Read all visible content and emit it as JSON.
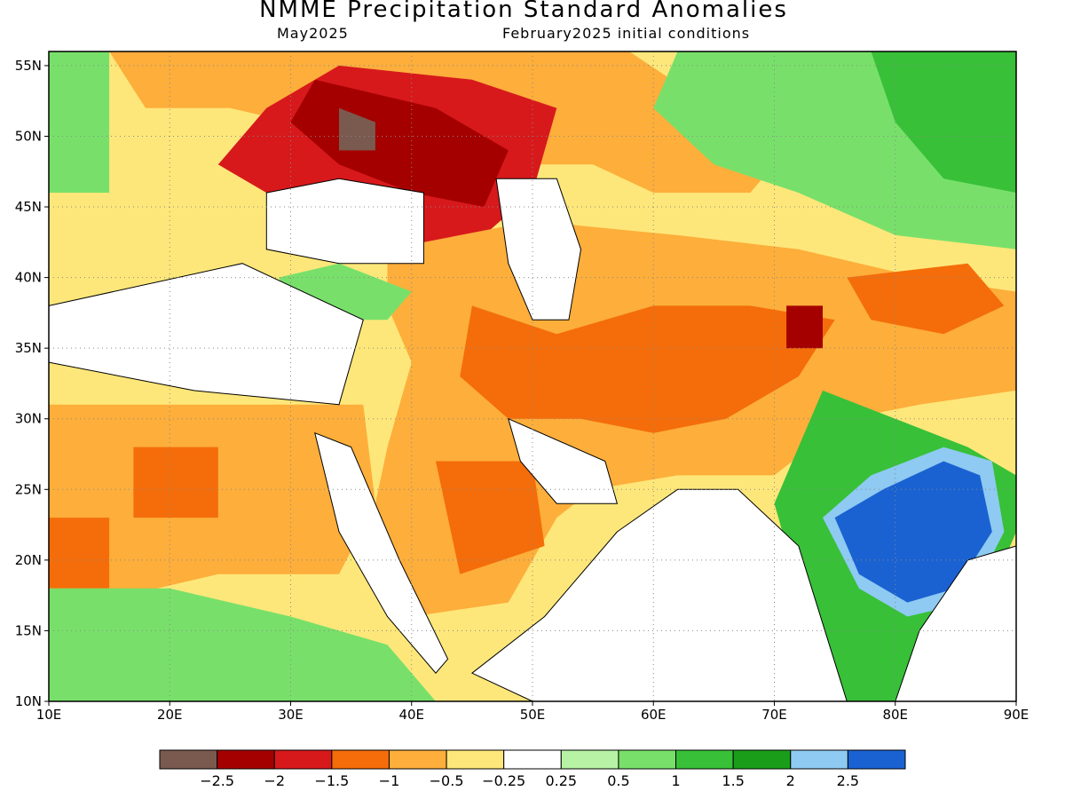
{
  "title": "NMME Precipitation Standard Anomalies",
  "subtitle_left": "May2025",
  "subtitle_right": "February2025 initial conditions",
  "map": {
    "lon_range": [
      10,
      90
    ],
    "lat_range": [
      10,
      56
    ],
    "lon_ticks": [
      "10E",
      "20E",
      "30E",
      "40E",
      "50E",
      "60E",
      "70E",
      "80E",
      "90E"
    ],
    "lat_ticks": [
      "10N",
      "15N",
      "20N",
      "25N",
      "30N",
      "35N",
      "40N",
      "45N",
      "50N",
      "55N"
    ],
    "grid": "dotted"
  },
  "colorbar": {
    "colors": [
      "#7a5a4f",
      "#a50000",
      "#d7191c",
      "#f46d0a",
      "#fdae3b",
      "#fee77a",
      "#ffffff",
      "#b7f2a5",
      "#78e06a",
      "#38c038",
      "#1a9e1a",
      "#8ecaf1",
      "#1a62d2"
    ],
    "labels": [
      "−2.5",
      "−2",
      "−1.5",
      "−1",
      "−0.5",
      "−0.25",
      "0.25",
      "0.5",
      "1",
      "1.5",
      "2",
      "2.5"
    ]
  },
  "regions": [
    {
      "name": "russia-europe-dry",
      "color": "#fdae3b",
      "pts": [
        [
          15,
          56
        ],
        [
          58,
          56
        ],
        [
          65,
          52
        ],
        [
          72,
          50
        ],
        [
          68,
          46
        ],
        [
          60,
          46
        ],
        [
          55,
          48
        ],
        [
          45,
          48
        ],
        [
          35,
          50
        ],
        [
          25,
          52
        ],
        [
          18,
          52
        ]
      ]
    },
    {
      "name": "ukraine-russia-strong-dry",
      "color": "#d7191c",
      "pts": [
        [
          28,
          52
        ],
        [
          34,
          55
        ],
        [
          45,
          54
        ],
        [
          52,
          52
        ],
        [
          50,
          46
        ],
        [
          46,
          43
        ],
        [
          38,
          42
        ],
        [
          30,
          45
        ],
        [
          24,
          48
        ]
      ]
    },
    {
      "name": "russia-core",
      "color": "#a50000",
      "pts": [
        [
          32,
          54
        ],
        [
          42,
          52
        ],
        [
          48,
          49
        ],
        [
          46,
          45
        ],
        [
          40,
          46
        ],
        [
          34,
          48
        ],
        [
          30,
          51
        ]
      ]
    },
    {
      "name": "extreme-dry",
      "color": "#7a5a4f",
      "pts": [
        [
          34,
          52
        ],
        [
          37,
          51
        ],
        [
          37,
          49
        ],
        [
          34,
          49
        ]
      ]
    },
    {
      "name": "mideast-dry",
      "color": "#fdae3b",
      "pts": [
        [
          38,
          42
        ],
        [
          50,
          44
        ],
        [
          62,
          43
        ],
        [
          72,
          42
        ],
        [
          82,
          40
        ],
        [
          90,
          39
        ],
        [
          90,
          32
        ],
        [
          82,
          31
        ],
        [
          76,
          30
        ],
        [
          70,
          26
        ],
        [
          62,
          26
        ],
        [
          55,
          25
        ],
        [
          52,
          23
        ],
        [
          48,
          17
        ],
        [
          40,
          16
        ],
        [
          36,
          20
        ],
        [
          38,
          28
        ],
        [
          40,
          34
        ],
        [
          38,
          38
        ]
      ]
    },
    {
      "name": "iran-afghan-moderate",
      "color": "#f46d0a",
      "pts": [
        [
          45,
          38
        ],
        [
          52,
          36
        ],
        [
          60,
          38
        ],
        [
          68,
          38
        ],
        [
          75,
          37
        ],
        [
          72,
          33
        ],
        [
          66,
          30
        ],
        [
          60,
          29
        ],
        [
          54,
          30
        ],
        [
          48,
          30
        ],
        [
          44,
          33
        ]
      ]
    },
    {
      "name": "pamir-severe",
      "color": "#a50000",
      "pts": [
        [
          71,
          38
        ],
        [
          74,
          38
        ],
        [
          74,
          35
        ],
        [
          71,
          35
        ]
      ]
    },
    {
      "name": "tibet-moderate",
      "color": "#f46d0a",
      "pts": [
        [
          76,
          40
        ],
        [
          86,
          41
        ],
        [
          89,
          38
        ],
        [
          84,
          36
        ],
        [
          78,
          37
        ]
      ]
    },
    {
      "name": "arabia-moderate",
      "color": "#f46d0a",
      "pts": [
        [
          42,
          27
        ],
        [
          50,
          27
        ],
        [
          51,
          21
        ],
        [
          44,
          19
        ]
      ]
    },
    {
      "name": "africa-dry",
      "color": "#fdae3b",
      "pts": [
        [
          10,
          31
        ],
        [
          36,
          31
        ],
        [
          37,
          24
        ],
        [
          34,
          19
        ],
        [
          24,
          19
        ],
        [
          14,
          17
        ],
        [
          10,
          18
        ]
      ]
    },
    {
      "name": "libya-moderate",
      "color": "#f46d0a",
      "pts": [
        [
          17,
          28
        ],
        [
          24,
          28
        ],
        [
          24,
          23
        ],
        [
          17,
          23
        ]
      ]
    },
    {
      "name": "chad-moderate",
      "color": "#f46d0a",
      "pts": [
        [
          10,
          23
        ],
        [
          15,
          23
        ],
        [
          15,
          18
        ],
        [
          10,
          18
        ]
      ]
    },
    {
      "name": "sahel-wet",
      "color": "#78e06a",
      "pts": [
        [
          10,
          18
        ],
        [
          20,
          18
        ],
        [
          30,
          16
        ],
        [
          38,
          14
        ],
        [
          42,
          10
        ],
        [
          10,
          10
        ]
      ]
    },
    {
      "name": "kazakh-wet",
      "color": "#78e06a",
      "pts": [
        [
          62,
          56
        ],
        [
          90,
          56
        ],
        [
          90,
          42
        ],
        [
          80,
          43
        ],
        [
          72,
          46
        ],
        [
          65,
          48
        ],
        [
          60,
          52
        ]
      ]
    },
    {
      "name": "mongolia-wet",
      "color": "#38c038",
      "pts": [
        [
          78,
          56
        ],
        [
          90,
          56
        ],
        [
          90,
          46
        ],
        [
          84,
          47
        ],
        [
          80,
          51
        ]
      ]
    },
    {
      "name": "india-wet",
      "color": "#38c038",
      "pts": [
        [
          70,
          24
        ],
        [
          74,
          32
        ],
        [
          80,
          30
        ],
        [
          86,
          28
        ],
        [
          90,
          26
        ],
        [
          90,
          22
        ],
        [
          88,
          18
        ],
        [
          84,
          15
        ],
        [
          80,
          10
        ],
        [
          76,
          10
        ],
        [
          72,
          18
        ]
      ]
    },
    {
      "name": "india-light-blue",
      "color": "#8ecaf1",
      "pts": [
        [
          74,
          23
        ],
        [
          78,
          26
        ],
        [
          84,
          28
        ],
        [
          88,
          27
        ],
        [
          89,
          22
        ],
        [
          86,
          17
        ],
        [
          81,
          16
        ],
        [
          77,
          18
        ]
      ]
    },
    {
      "name": "india-blue",
      "color": "#1a62d2",
      "pts": [
        [
          75,
          23
        ],
        [
          79,
          25
        ],
        [
          84,
          27
        ],
        [
          87,
          26
        ],
        [
          88,
          22
        ],
        [
          85,
          18
        ],
        [
          81,
          17
        ],
        [
          77,
          19
        ]
      ]
    },
    {
      "name": "med-wet",
      "color": "#78e06a",
      "pts": [
        [
          29,
          40
        ],
        [
          34,
          41
        ],
        [
          40,
          39
        ],
        [
          38,
          37
        ],
        [
          31,
          37
        ]
      ]
    },
    {
      "name": "europe-wet",
      "color": "#78e06a",
      "pts": [
        [
          10,
          56
        ],
        [
          15,
          56
        ],
        [
          15,
          46
        ],
        [
          10,
          46
        ]
      ]
    }
  ],
  "white_areas": [
    {
      "name": "black-sea",
      "pts": [
        [
          28,
          46
        ],
        [
          34,
          47
        ],
        [
          41,
          46
        ],
        [
          41,
          41
        ],
        [
          34,
          41
        ],
        [
          28,
          42
        ]
      ]
    },
    {
      "name": "caspian-sea",
      "pts": [
        [
          47,
          47
        ],
        [
          52,
          47
        ],
        [
          54,
          42
        ],
        [
          53,
          37
        ],
        [
          50,
          37
        ],
        [
          48,
          41
        ]
      ]
    },
    {
      "name": "mediterranean",
      "pts": [
        [
          10,
          38
        ],
        [
          26,
          41
        ],
        [
          36,
          37
        ],
        [
          34,
          31
        ],
        [
          22,
          32
        ],
        [
          10,
          34
        ]
      ]
    },
    {
      "name": "red-sea",
      "pts": [
        [
          32,
          29
        ],
        [
          35,
          28
        ],
        [
          39,
          20
        ],
        [
          43,
          13
        ],
        [
          42,
          12
        ],
        [
          38,
          16
        ],
        [
          34,
          22
        ]
      ]
    },
    {
      "name": "persian-gulf",
      "pts": [
        [
          48,
          30
        ],
        [
          56,
          27
        ],
        [
          57,
          24
        ],
        [
          52,
          24
        ],
        [
          49,
          27
        ]
      ]
    },
    {
      "name": "arabian-sea",
      "pts": [
        [
          57,
          22
        ],
        [
          62,
          25
        ],
        [
          67,
          25
        ],
        [
          72,
          21
        ],
        [
          76,
          10
        ],
        [
          50,
          10
        ],
        [
          45,
          12
        ],
        [
          51,
          16
        ]
      ]
    },
    {
      "name": "bay-of-bengal",
      "pts": [
        [
          80,
          10
        ],
        [
          82,
          15
        ],
        [
          86,
          20
        ],
        [
          90,
          21
        ],
        [
          90,
          10
        ]
      ]
    }
  ]
}
